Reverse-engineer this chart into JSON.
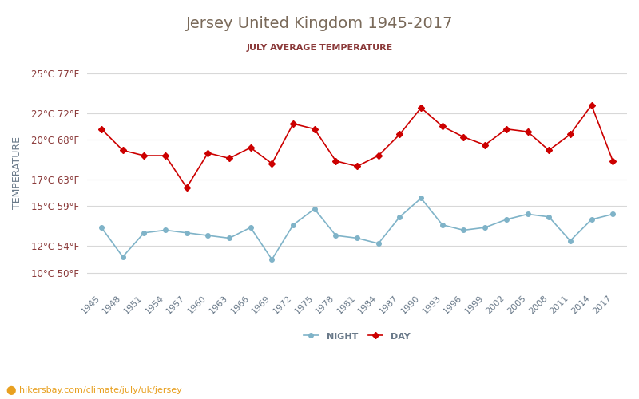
{
  "title": "Jersey United Kingdom 1945-2017",
  "subtitle": "JULY AVERAGE TEMPERATURE",
  "ylabel": "TEMPERATURE",
  "watermark": "⬤ hikersbay.com/climate/july/uk/jersey",
  "years": [
    1945,
    1948,
    1951,
    1954,
    1957,
    1960,
    1963,
    1966,
    1969,
    1972,
    1975,
    1978,
    1981,
    1984,
    1987,
    1990,
    1993,
    1996,
    1999,
    2002,
    2005,
    2008,
    2011,
    2014,
    2017
  ],
  "day_temps": [
    20.8,
    19.2,
    18.8,
    18.8,
    16.4,
    19.0,
    18.6,
    19.4,
    18.2,
    21.2,
    20.8,
    18.4,
    18.0,
    18.8,
    20.4,
    22.4,
    21.0,
    20.2,
    19.6,
    20.8,
    20.6,
    19.2,
    20.4,
    22.6,
    18.4
  ],
  "night_temps": [
    13.4,
    11.2,
    13.0,
    13.2,
    13.0,
    12.8,
    12.6,
    13.4,
    11.0,
    13.6,
    14.8,
    12.8,
    12.6,
    12.2,
    14.2,
    15.6,
    13.6,
    13.2,
    13.4,
    14.0,
    14.4,
    14.2,
    12.4,
    14.0,
    14.4
  ],
  "day_color": "#cc0000",
  "night_color": "#7fb3c8",
  "title_color": "#7a6a5a",
  "subtitle_color": "#8b3a3a",
  "ylabel_color": "#6a7a8a",
  "tick_label_color": "#8b3a3a",
  "xtick_color": "#6a7a8a",
  "grid_color": "#d8d8d8",
  "background_color": "#ffffff",
  "watermark_color": "#e8a020",
  "yticks_c": [
    10,
    12,
    15,
    17,
    20,
    22,
    25
  ],
  "yticks_f": [
    50,
    54,
    59,
    63,
    68,
    72,
    77
  ],
  "ylim": [
    9,
    26
  ],
  "legend_night": "NIGHT",
  "legend_day": "DAY"
}
